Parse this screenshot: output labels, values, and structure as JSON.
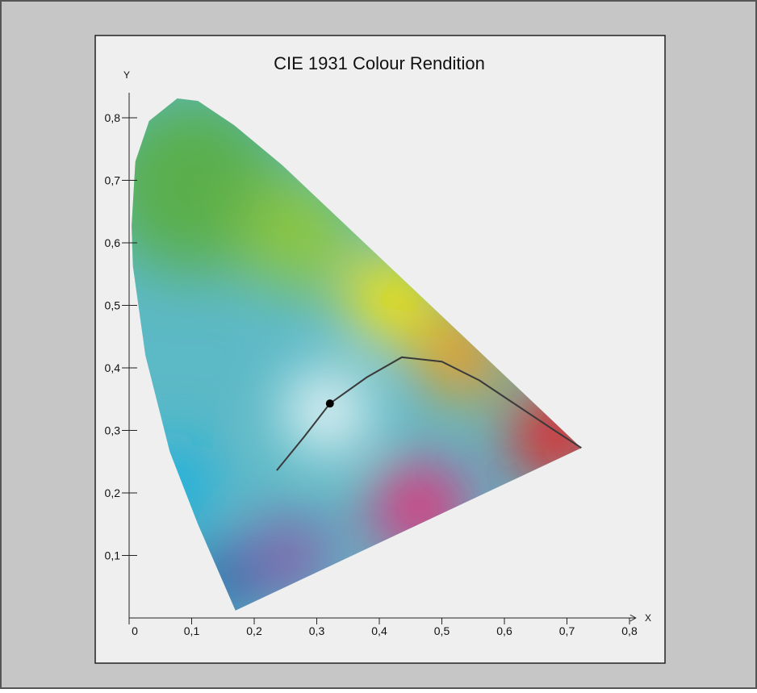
{
  "chart_data": {
    "type": "chromaticity",
    "title": "CIE 1931 Colour Rendition",
    "x_label": "X",
    "y_label": "Y",
    "xlim": [
      0,
      0.81
    ],
    "ylim": [
      0,
      0.84
    ],
    "xticks": [
      0,
      {
        "value": 0.1,
        "label": "0,1"
      },
      {
        "value": 0.2,
        "label": "0,2"
      },
      {
        "value": 0.3,
        "label": "0,3"
      },
      {
        "value": 0.4,
        "label": "0,4"
      },
      {
        "value": 0.5,
        "label": "0,5"
      },
      {
        "value": 0.6,
        "label": "0,6"
      },
      {
        "value": 0.7,
        "label": "0,7"
      },
      {
        "value": 0.8,
        "label": "0,8"
      }
    ],
    "yticks": [
      {
        "value": 0.1,
        "label": "0,1"
      },
      {
        "value": 0.2,
        "label": "0,2"
      },
      {
        "value": 0.3,
        "label": "0,3"
      },
      {
        "value": 0.4,
        "label": "0,4"
      },
      {
        "value": 0.5,
        "label": "0,5"
      },
      {
        "value": 0.6,
        "label": "0,6"
      },
      {
        "value": 0.7,
        "label": "0,7"
      },
      {
        "value": 0.8,
        "label": "0,8"
      }
    ],
    "spectral_locus": {
      "x": [
        0.17,
        0.11,
        0.065,
        0.026,
        0.006,
        0.004,
        0.01,
        0.032,
        0.077,
        0.11,
        0.168,
        0.245,
        0.723
      ],
      "y": [
        0.012,
        0.15,
        0.266,
        0.42,
        0.563,
        0.627,
        0.73,
        0.795,
        0.831,
        0.827,
        0.788,
        0.724,
        0.272
      ]
    },
    "planckian_locus": {
      "color": "#3a3a3a",
      "x": [
        0.236,
        0.28,
        0.321,
        0.38,
        0.436,
        0.5,
        0.56,
        0.62,
        0.68,
        0.723
      ],
      "y": [
        0.236,
        0.29,
        0.343,
        0.385,
        0.417,
        0.41,
        0.38,
        0.34,
        0.3,
        0.272
      ]
    },
    "white_point": {
      "x": 0.321,
      "y": 0.343,
      "color": "#000000"
    }
  }
}
